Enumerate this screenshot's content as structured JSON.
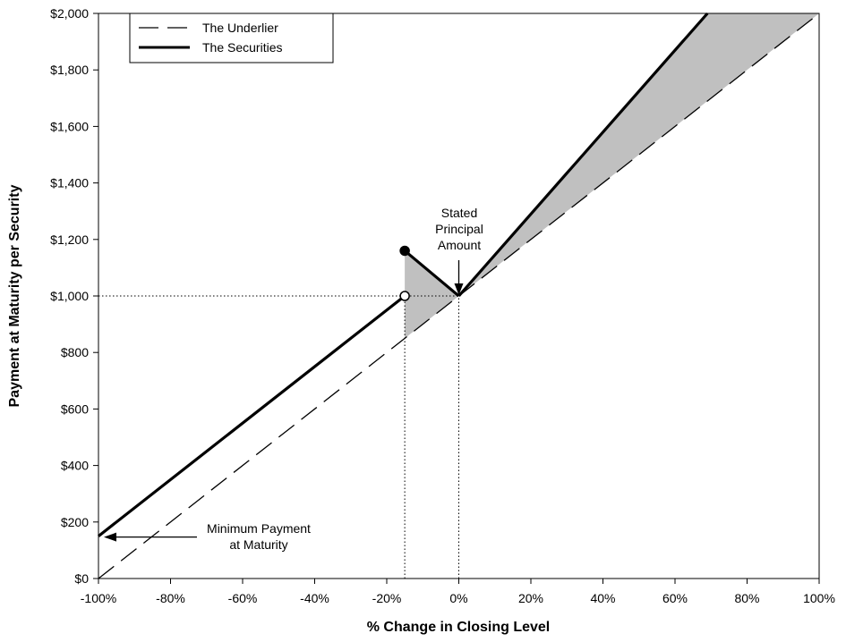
{
  "chart_data": {
    "type": "line",
    "title": "",
    "xlabel": "% Change in Closing Level",
    "ylabel": "Payment at Maturity per Security",
    "xlim": [
      -100,
      100
    ],
    "ylim": [
      0,
      2000
    ],
    "x_ticks": [
      -100,
      -80,
      -60,
      -40,
      -20,
      0,
      20,
      40,
      60,
      80,
      100
    ],
    "x_tick_labels": [
      "-100%",
      "-80%",
      "-60%",
      "-40%",
      "-20%",
      "0%",
      "20%",
      "40%",
      "60%",
      "80%",
      "100%"
    ],
    "y_ticks": [
      0,
      200,
      400,
      600,
      800,
      1000,
      1200,
      1400,
      1600,
      1800,
      2000
    ],
    "y_tick_labels": [
      "$0",
      "$200",
      "$400",
      "$600",
      "$800",
      "$1,000",
      "$1,200",
      "$1,400",
      "$1,600",
      "$1,800",
      "$2,000"
    ],
    "grid": false,
    "legend_position": "top-left",
    "legend": [
      {
        "label": "The Underlier",
        "style": "dashed"
      },
      {
        "label": "The Securities",
        "style": "solid-bold"
      }
    ],
    "series": [
      {
        "name": "The Underlier",
        "style": "dashed",
        "x": [
          -100,
          100
        ],
        "y": [
          0,
          2000
        ]
      },
      {
        "name": "The Securities",
        "style": "solid-bold",
        "segments": [
          {
            "x": [
              -100,
              -15
            ],
            "y": [
              150,
              1000
            ]
          },
          {
            "x": [
              -15,
              0
            ],
            "y": [
              1160,
              1000
            ]
          },
          {
            "x": [
              0,
              69
            ],
            "y": [
              1000,
              2000
            ]
          }
        ]
      }
    ],
    "points": [
      {
        "name": "open-circle",
        "x": -15,
        "y": 1000,
        "filled": false
      },
      {
        "name": "filled-circle",
        "x": -15,
        "y": 1160,
        "filled": true
      }
    ],
    "shaded_regions": [
      {
        "name": "shade-left",
        "polygon": [
          [
            -15,
            1160
          ],
          [
            0,
            1000
          ],
          [
            -15,
            850
          ]
        ]
      },
      {
        "name": "shade-right",
        "polygon": [
          [
            0,
            1000
          ],
          [
            69,
            2000
          ],
          [
            100,
            2000
          ]
        ]
      }
    ],
    "reference_lines": [
      {
        "name": "ref-horizontal-1000",
        "x": [
          -100,
          0
        ],
        "y": [
          1000,
          1000
        ],
        "style": "dotted"
      },
      {
        "name": "ref-vertical-minus15",
        "x": [
          -15,
          -15
        ],
        "y": [
          0,
          1000
        ],
        "style": "dotted"
      },
      {
        "name": "ref-vertical-zero",
        "x": [
          0,
          0
        ],
        "y": [
          0,
          1000
        ],
        "style": "dotted"
      }
    ],
    "annotations": [
      {
        "name": "stated-principal-annotation",
        "lines": [
          "Stated",
          "Principal",
          "Amount"
        ],
        "arrow_to": {
          "x": 0,
          "y": 1000
        }
      },
      {
        "name": "minimum-payment-annotation",
        "lines": [
          "Minimum Payment",
          "at Maturity"
        ],
        "arrow_to": {
          "x": -100,
          "y": 150
        }
      }
    ]
  },
  "colors": {
    "line": "#000000",
    "shade": "#c0c0c0",
    "background": "#ffffff"
  }
}
